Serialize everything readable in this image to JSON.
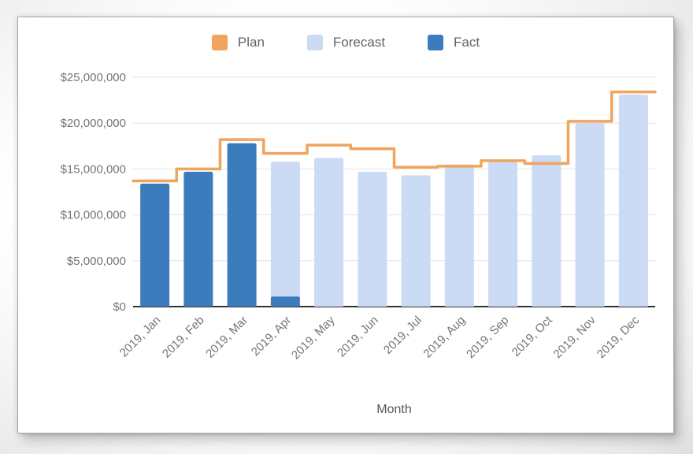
{
  "legend": [
    {
      "label": "Plan",
      "color": "#F0A45C"
    },
    {
      "label": "Forecast",
      "color": "#CBDAF5"
    },
    {
      "label": "Fact",
      "color": "#3D7CBC"
    }
  ],
  "colors": {
    "gridline": "#e3e3e3",
    "baseline": "#333333",
    "tick_text": "#757575"
  },
  "chart_data": {
    "type": "combo",
    "title": "",
    "xlabel": "Month",
    "ylabel": "",
    "categories": [
      "2019, Jan",
      "2019, Feb",
      "2019, Mar",
      "2019, Apr",
      "2019, May",
      "2019, Jun",
      "2019, Jul",
      "2019, Aug",
      "2019, Sep",
      "2019, Oct",
      "2019, Nov",
      "2019, Dec"
    ],
    "series": [
      {
        "name": "Plan",
        "type": "stepped-line",
        "color": "#F0A45C",
        "values": [
          13700000,
          15000000,
          18200000,
          16700000,
          17600000,
          17200000,
          15200000,
          15300000,
          15900000,
          15600000,
          20200000,
          23400000
        ]
      },
      {
        "name": "Forecast",
        "type": "bar",
        "color": "#CBDAF5",
        "values": [
          null,
          null,
          null,
          15800000,
          16200000,
          14700000,
          14300000,
          15500000,
          15800000,
          16500000,
          20000000,
          23100000
        ]
      },
      {
        "name": "Fact",
        "type": "bar",
        "color": "#3D7CBC",
        "values": [
          13400000,
          14700000,
          17800000,
          1100000,
          null,
          null,
          null,
          null,
          null,
          null,
          null,
          null
        ]
      }
    ],
    "ylim": [
      0,
      25000000
    ],
    "ytick_step": 5000000,
    "ytick_labels": [
      "$0",
      "$5,000,000",
      "$10,000,000",
      "$15,000,000",
      "$20,000,000",
      "$25,000,000"
    ],
    "grid": true,
    "legend_position": "top"
  }
}
